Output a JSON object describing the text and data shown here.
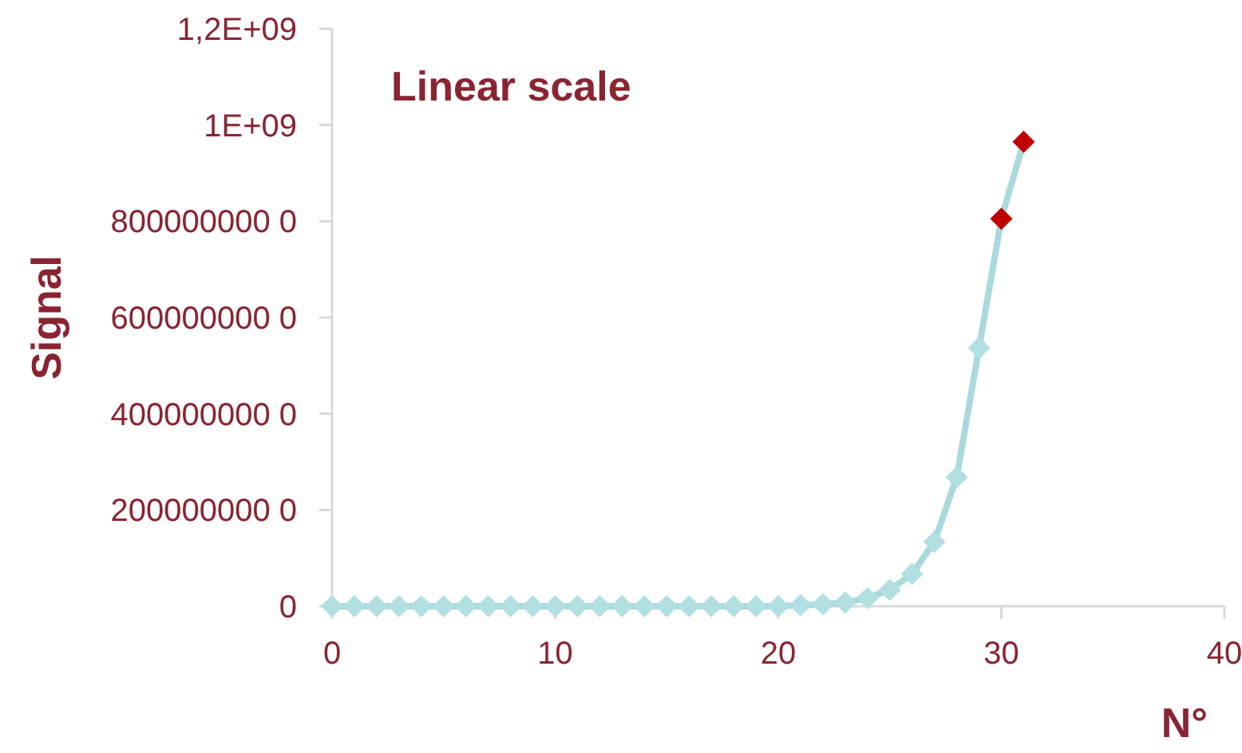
{
  "chart_data": {
    "type": "line",
    "title": "Linear scale",
    "xlabel": "N°",
    "ylabel": "Signal",
    "x": [
      0,
      1,
      2,
      3,
      4,
      5,
      6,
      7,
      8,
      9,
      10,
      11,
      12,
      13,
      14,
      15,
      16,
      17,
      18,
      19,
      20,
      21,
      22,
      23,
      24,
      25,
      26,
      27,
      28,
      29,
      30,
      31
    ],
    "series": [
      {
        "color": "#a9d9dc",
        "colors": [
          "#b2dfe2",
          "#b2dfe2",
          "#b2dfe2",
          "#b2dfe2",
          "#b2dfe2",
          "#b2dfe2",
          "#b2dfe2",
          "#b2dfe2",
          "#b2dfe2",
          "#b2dfe2",
          "#b2dfe2",
          "#b2dfe2",
          "#b2dfe2",
          "#b2dfe2",
          "#b2dfe2",
          "#b2dfe2",
          "#b2dfe2",
          "#b2dfe2",
          "#b2dfe2",
          "#b2dfe2",
          "#b2dfe2",
          "#b2dfe2",
          "#b2dfe2",
          "#b2dfe2",
          "#b2dfe2",
          "#b2dfe2",
          "#b2dfe2",
          "#b2dfe2",
          "#b2dfe2",
          "#b2dfe2",
          "#c00000",
          "#c00000"
        ],
        "values": [
          0,
          0,
          0,
          0,
          0,
          0,
          0,
          0,
          0,
          0,
          0,
          0,
          0,
          0,
          0,
          0,
          0,
          0,
          0,
          0,
          0,
          2000000,
          4000000,
          8000000,
          17000000,
          34000000,
          67000000,
          134000000,
          268000000,
          537000000,
          805000000,
          965000000
        ]
      }
    ],
    "xlim": [
      0,
      40
    ],
    "xticks": [
      0,
      10,
      20,
      30,
      40
    ],
    "ylim": [
      0,
      1200000000
    ],
    "yticks": [
      {
        "value": 0,
        "label": "0"
      },
      {
        "value": 200000000,
        "label": "200000000 0"
      },
      {
        "value": 400000000,
        "label": "400000000 0"
      },
      {
        "value": 600000000,
        "label": "600000000 0"
      },
      {
        "value": 800000000,
        "label": "800000000 0"
      },
      {
        "value": 1000000000,
        "label": "1E+09"
      },
      {
        "value": 1200000000,
        "label": "1,2E+09"
      }
    ],
    "grid": false,
    "marker": "diamond",
    "line_style": "solid"
  }
}
